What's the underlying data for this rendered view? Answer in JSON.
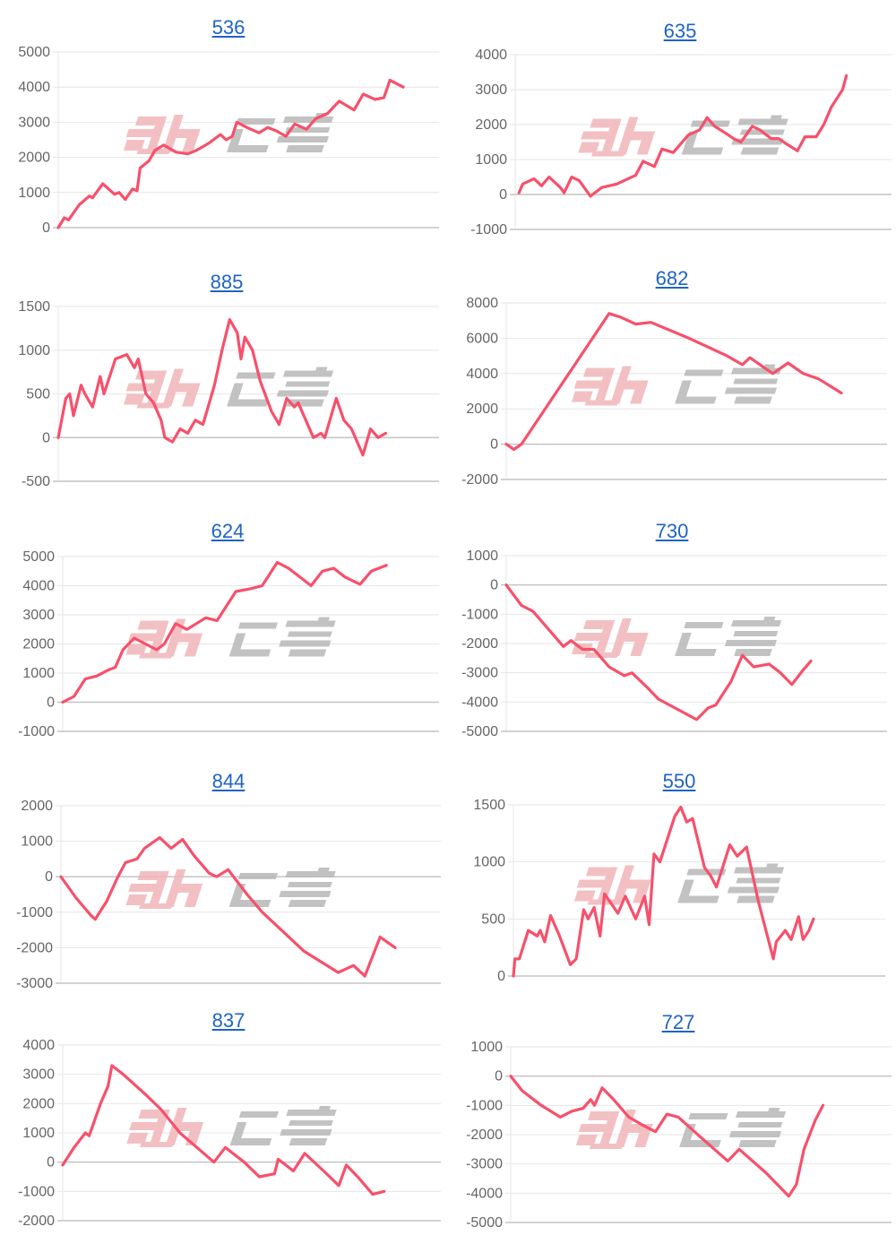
{
  "colors": {
    "line": "#f7506b",
    "grid": "#e6e6e6",
    "zero_line": "#c4c4c4",
    "tick_text": "#666666",
    "title_link": "#1f63c6",
    "watermark_pink": "#f0b6b9",
    "watermark_gray": "#b8b8b8"
  },
  "watermark": "みんレポ",
  "chart_data": [
    {
      "type": "line",
      "title": "536",
      "yticks": [
        0,
        1000,
        2000,
        3000,
        4000,
        5000
      ],
      "ylim": [
        0,
        5000
      ],
      "xlim": [
        0,
        100
      ],
      "grid": true,
      "points": [
        [
          0,
          0
        ],
        [
          1.6,
          280
        ],
        [
          2.7,
          220
        ],
        [
          5.5,
          650
        ],
        [
          8.2,
          900
        ],
        [
          9,
          850
        ],
        [
          11.7,
          1250
        ],
        [
          14.8,
          950
        ],
        [
          16,
          1000
        ],
        [
          17.6,
          800
        ],
        [
          19.5,
          1100
        ],
        [
          20.7,
          1050
        ],
        [
          21.5,
          1700
        ],
        [
          23.8,
          1900
        ],
        [
          25.4,
          2200
        ],
        [
          27.7,
          2350
        ],
        [
          30.9,
          2150
        ],
        [
          34,
          2100
        ],
        [
          36.3,
          2200
        ],
        [
          39.5,
          2400
        ],
        [
          42.6,
          2650
        ],
        [
          44.1,
          2500
        ],
        [
          45.7,
          2600
        ],
        [
          46.9,
          3000
        ],
        [
          49.6,
          2850
        ],
        [
          52.7,
          2700
        ],
        [
          55,
          2850
        ],
        [
          57.4,
          2750
        ],
        [
          59.8,
          2600
        ],
        [
          62.1,
          2950
        ],
        [
          65.2,
          2800
        ],
        [
          67.6,
          3100
        ],
        [
          70.7,
          3250
        ],
        [
          73.8,
          3600
        ],
        [
          77.7,
          3350
        ],
        [
          80.1,
          3800
        ],
        [
          83.2,
          3650
        ],
        [
          85.5,
          3700
        ],
        [
          87.1,
          4200
        ],
        [
          90.6,
          4000
        ]
      ]
    },
    {
      "type": "line",
      "title": "635",
      "yticks": [
        -1000,
        0,
        1000,
        2000,
        3000,
        4000
      ],
      "ylim": [
        -1000,
        4000
      ],
      "xlim": [
        0,
        100
      ],
      "grid": true,
      "points": [
        [
          1,
          50
        ],
        [
          2,
          300
        ],
        [
          5,
          450
        ],
        [
          7,
          250
        ],
        [
          9,
          500
        ],
        [
          12,
          200
        ],
        [
          13,
          50
        ],
        [
          15,
          500
        ],
        [
          17,
          400
        ],
        [
          20,
          -50
        ],
        [
          23,
          200
        ],
        [
          25,
          250
        ],
        [
          27,
          300
        ],
        [
          30,
          450
        ],
        [
          32,
          550
        ],
        [
          34,
          950
        ],
        [
          37,
          800
        ],
        [
          39,
          1300
        ],
        [
          42,
          1200
        ],
        [
          44,
          1450
        ],
        [
          46,
          1700
        ],
        [
          49,
          1850
        ],
        [
          51,
          2200
        ],
        [
          53,
          1950
        ],
        [
          56,
          1750
        ],
        [
          58,
          1600
        ],
        [
          60,
          1500
        ],
        [
          63,
          1950
        ],
        [
          65,
          1850
        ],
        [
          68,
          1600
        ],
        [
          70,
          1600
        ],
        [
          72,
          1450
        ],
        [
          75,
          1250
        ],
        [
          77,
          1650
        ],
        [
          80,
          1650
        ],
        [
          82,
          2000
        ],
        [
          84,
          2500
        ],
        [
          87,
          3000
        ],
        [
          88,
          3400
        ]
      ]
    },
    {
      "type": "line",
      "title": "885",
      "yticks": [
        -500,
        0,
        500,
        1000,
        1500
      ],
      "ylim": [
        -500,
        1500
      ],
      "xlim": [
        0,
        100
      ],
      "grid": true,
      "points": [
        [
          0,
          0
        ],
        [
          2,
          450
        ],
        [
          3,
          500
        ],
        [
          4,
          250
        ],
        [
          6,
          600
        ],
        [
          7,
          500
        ],
        [
          9,
          350
        ],
        [
          11,
          700
        ],
        [
          12,
          500
        ],
        [
          15,
          900
        ],
        [
          18,
          950
        ],
        [
          20,
          800
        ],
        [
          21,
          900
        ],
        [
          23,
          500
        ],
        [
          25,
          400
        ],
        [
          27,
          200
        ],
        [
          28,
          0
        ],
        [
          30,
          -50
        ],
        [
          32,
          100
        ],
        [
          34,
          50
        ],
        [
          36,
          200
        ],
        [
          38,
          150
        ],
        [
          39,
          300
        ],
        [
          41,
          600
        ],
        [
          43,
          1000
        ],
        [
          45,
          1350
        ],
        [
          47,
          1200
        ],
        [
          48,
          900
        ],
        [
          49,
          1150
        ],
        [
          51,
          1000
        ],
        [
          53,
          650
        ],
        [
          56,
          300
        ],
        [
          58,
          150
        ],
        [
          60,
          450
        ],
        [
          62,
          350
        ],
        [
          63,
          400
        ],
        [
          65,
          200
        ],
        [
          67,
          0
        ],
        [
          69,
          50
        ],
        [
          70,
          0
        ],
        [
          73,
          450
        ],
        [
          75,
          200
        ],
        [
          77,
          100
        ],
        [
          79,
          -100
        ],
        [
          80,
          -200
        ],
        [
          82,
          100
        ],
        [
          84,
          0
        ],
        [
          86,
          50
        ]
      ]
    },
    {
      "type": "line",
      "title": "682",
      "yticks": [
        -2000,
        0,
        2000,
        4000,
        6000,
        8000
      ],
      "ylim": [
        -2000,
        8000
      ],
      "xlim": [
        0,
        100
      ],
      "grid": true,
      "points": [
        [
          0,
          0
        ],
        [
          2,
          -300
        ],
        [
          4,
          0
        ],
        [
          27,
          7400
        ],
        [
          30,
          7200
        ],
        [
          34,
          6800
        ],
        [
          38,
          6900
        ],
        [
          48,
          6000
        ],
        [
          58,
          5000
        ],
        [
          62,
          4500
        ],
        [
          64,
          4900
        ],
        [
          68,
          4300
        ],
        [
          70,
          4000
        ],
        [
          74,
          4600
        ],
        [
          78,
          4000
        ],
        [
          82,
          3700
        ],
        [
          88,
          2900
        ]
      ]
    },
    {
      "type": "line",
      "title": "624",
      "yticks": [
        -1000,
        0,
        1000,
        2000,
        3000,
        4000,
        5000
      ],
      "ylim": [
        -1000,
        5000
      ],
      "xlim": [
        0,
        100
      ],
      "grid": true,
      "points": [
        [
          0,
          0
        ],
        [
          3,
          200
        ],
        [
          6,
          800
        ],
        [
          9,
          900
        ],
        [
          12,
          1100
        ],
        [
          14,
          1200
        ],
        [
          16,
          1800
        ],
        [
          19,
          2200
        ],
        [
          22,
          2000
        ],
        [
          25,
          1800
        ],
        [
          27,
          2000
        ],
        [
          30,
          2700
        ],
        [
          33,
          2500
        ],
        [
          38,
          2900
        ],
        [
          41,
          2800
        ],
        [
          43,
          3200
        ],
        [
          46,
          3800
        ],
        [
          50,
          3900
        ],
        [
          53,
          4000
        ],
        [
          57,
          4800
        ],
        [
          60,
          4600
        ],
        [
          64,
          4200
        ],
        [
          66,
          4000
        ],
        [
          69,
          4500
        ],
        [
          72,
          4600
        ],
        [
          75,
          4300
        ],
        [
          79,
          4050
        ],
        [
          82,
          4500
        ],
        [
          86,
          4700
        ]
      ]
    },
    {
      "type": "line",
      "title": "730",
      "yticks": [
        -5000,
        -4000,
        -3000,
        -2000,
        -1000,
        0,
        1000
      ],
      "ylim": [
        -5000,
        1000
      ],
      "xlim": [
        0,
        100
      ],
      "grid": true,
      "points": [
        [
          0,
          0
        ],
        [
          4,
          -700
        ],
        [
          7,
          -900
        ],
        [
          11,
          -1500
        ],
        [
          15,
          -2100
        ],
        [
          17,
          -1900
        ],
        [
          20,
          -2200
        ],
        [
          23,
          -2200
        ],
        [
          27,
          -2800
        ],
        [
          31,
          -3100
        ],
        [
          33,
          -3000
        ],
        [
          37,
          -3500
        ],
        [
          40,
          -3900
        ],
        [
          50,
          -4600
        ],
        [
          53,
          -4200
        ],
        [
          55,
          -4100
        ],
        [
          59,
          -3300
        ],
        [
          62,
          -2400
        ],
        [
          65,
          -2800
        ],
        [
          69,
          -2700
        ],
        [
          72,
          -3000
        ],
        [
          75,
          -3400
        ],
        [
          78,
          -2900
        ],
        [
          80,
          -2600
        ]
      ]
    },
    {
      "type": "line",
      "title": "844",
      "yticks": [
        -3000,
        -2000,
        -1000,
        0,
        1000,
        2000
      ],
      "ylim": [
        -3000,
        2000
      ],
      "xlim": [
        0,
        100
      ],
      "grid": true,
      "points": [
        [
          0,
          0
        ],
        [
          4,
          -600
        ],
        [
          8,
          -1100
        ],
        [
          9,
          -1200
        ],
        [
          12,
          -700
        ],
        [
          15,
          0
        ],
        [
          17,
          400
        ],
        [
          20,
          500
        ],
        [
          22,
          800
        ],
        [
          26,
          1100
        ],
        [
          29,
          800
        ],
        [
          32,
          1050
        ],
        [
          35,
          600
        ],
        [
          39,
          100
        ],
        [
          41,
          0
        ],
        [
          44,
          200
        ],
        [
          49,
          -500
        ],
        [
          53,
          -1000
        ],
        [
          59,
          -1600
        ],
        [
          64,
          -2100
        ],
        [
          73,
          -2700
        ],
        [
          77,
          -2500
        ],
        [
          80,
          -2800
        ],
        [
          84,
          -1700
        ],
        [
          88,
          -2000
        ]
      ]
    },
    {
      "type": "line",
      "title": "550",
      "yticks": [
        0,
        500,
        1000,
        1500
      ],
      "ylim": [
        0,
        1500
      ],
      "xlim": [
        0,
        100
      ],
      "grid": true,
      "points": [
        [
          0,
          0
        ],
        [
          0.4,
          150
        ],
        [
          1.6,
          150
        ],
        [
          4,
          400
        ],
        [
          6.4,
          350
        ],
        [
          7.2,
          400
        ],
        [
          8.4,
          300
        ],
        [
          10,
          530
        ],
        [
          12.4,
          350
        ],
        [
          15.3,
          100
        ],
        [
          16.9,
          150
        ],
        [
          18.9,
          580
        ],
        [
          20.1,
          500
        ],
        [
          21.7,
          600
        ],
        [
          23.3,
          350
        ],
        [
          24.5,
          720
        ],
        [
          28.1,
          550
        ],
        [
          30.1,
          700
        ],
        [
          32.9,
          500
        ],
        [
          35.3,
          700
        ],
        [
          36.5,
          450
        ],
        [
          37.8,
          1070
        ],
        [
          39.4,
          1000
        ],
        [
          43.4,
          1400
        ],
        [
          45,
          1480
        ],
        [
          46.6,
          1350
        ],
        [
          48.2,
          1380
        ],
        [
          51.4,
          950
        ],
        [
          53,
          880
        ],
        [
          54.6,
          780
        ],
        [
          58.2,
          1150
        ],
        [
          60.2,
          1050
        ],
        [
          62.7,
          1130
        ],
        [
          65.9,
          650
        ],
        [
          69.9,
          150
        ],
        [
          70.7,
          300
        ],
        [
          73.1,
          400
        ],
        [
          74.7,
          320
        ],
        [
          76.7,
          520
        ],
        [
          77.9,
          320
        ],
        [
          79.5,
          400
        ],
        [
          80.7,
          500
        ]
      ]
    },
    {
      "type": "line",
      "title": "837",
      "yticks": [
        -2000,
        -1000,
        0,
        1000,
        2000,
        3000,
        4000
      ],
      "ylim": [
        -2000,
        4000
      ],
      "xlim": [
        0,
        100
      ],
      "grid": true,
      "points": [
        [
          0,
          -100
        ],
        [
          3,
          500
        ],
        [
          6,
          1000
        ],
        [
          7,
          900
        ],
        [
          10,
          2000
        ],
        [
          12,
          2600
        ],
        [
          13,
          3300
        ],
        [
          16,
          3000
        ],
        [
          22,
          2300
        ],
        [
          26,
          1800
        ],
        [
          31,
          1000
        ],
        [
          40,
          0
        ],
        [
          43,
          500
        ],
        [
          48,
          0
        ],
        [
          52,
          -500
        ],
        [
          56,
          -400
        ],
        [
          57,
          100
        ],
        [
          61,
          -300
        ],
        [
          64,
          300
        ],
        [
          69,
          -300
        ],
        [
          73,
          -800
        ],
        [
          75,
          -100
        ],
        [
          78,
          -500
        ],
        [
          82,
          -1100
        ],
        [
          85,
          -1000
        ]
      ]
    },
    {
      "type": "line",
      "title": "727",
      "yticks": [
        -5000,
        -4000,
        -3000,
        -2000,
        -1000,
        0,
        1000
      ],
      "ylim": [
        -5000,
        1000
      ],
      "xlim": [
        0,
        100
      ],
      "grid": true,
      "points": [
        [
          0,
          0
        ],
        [
          3,
          -500
        ],
        [
          6,
          -800
        ],
        [
          8,
          -1000
        ],
        [
          13,
          -1400
        ],
        [
          16,
          -1200
        ],
        [
          19,
          -1100
        ],
        [
          21,
          -800
        ],
        [
          22,
          -1000
        ],
        [
          24,
          -400
        ],
        [
          27,
          -800
        ],
        [
          31,
          -1400
        ],
        [
          35,
          -1700
        ],
        [
          38,
          -1900
        ],
        [
          41,
          -1300
        ],
        [
          44,
          -1400
        ],
        [
          50,
          -2100
        ],
        [
          57,
          -2900
        ],
        [
          60,
          -2500
        ],
        [
          67,
          -3300
        ],
        [
          73,
          -4100
        ],
        [
          75,
          -3700
        ],
        [
          77,
          -2500
        ],
        [
          80,
          -1500
        ],
        [
          82,
          -1000
        ]
      ]
    }
  ]
}
